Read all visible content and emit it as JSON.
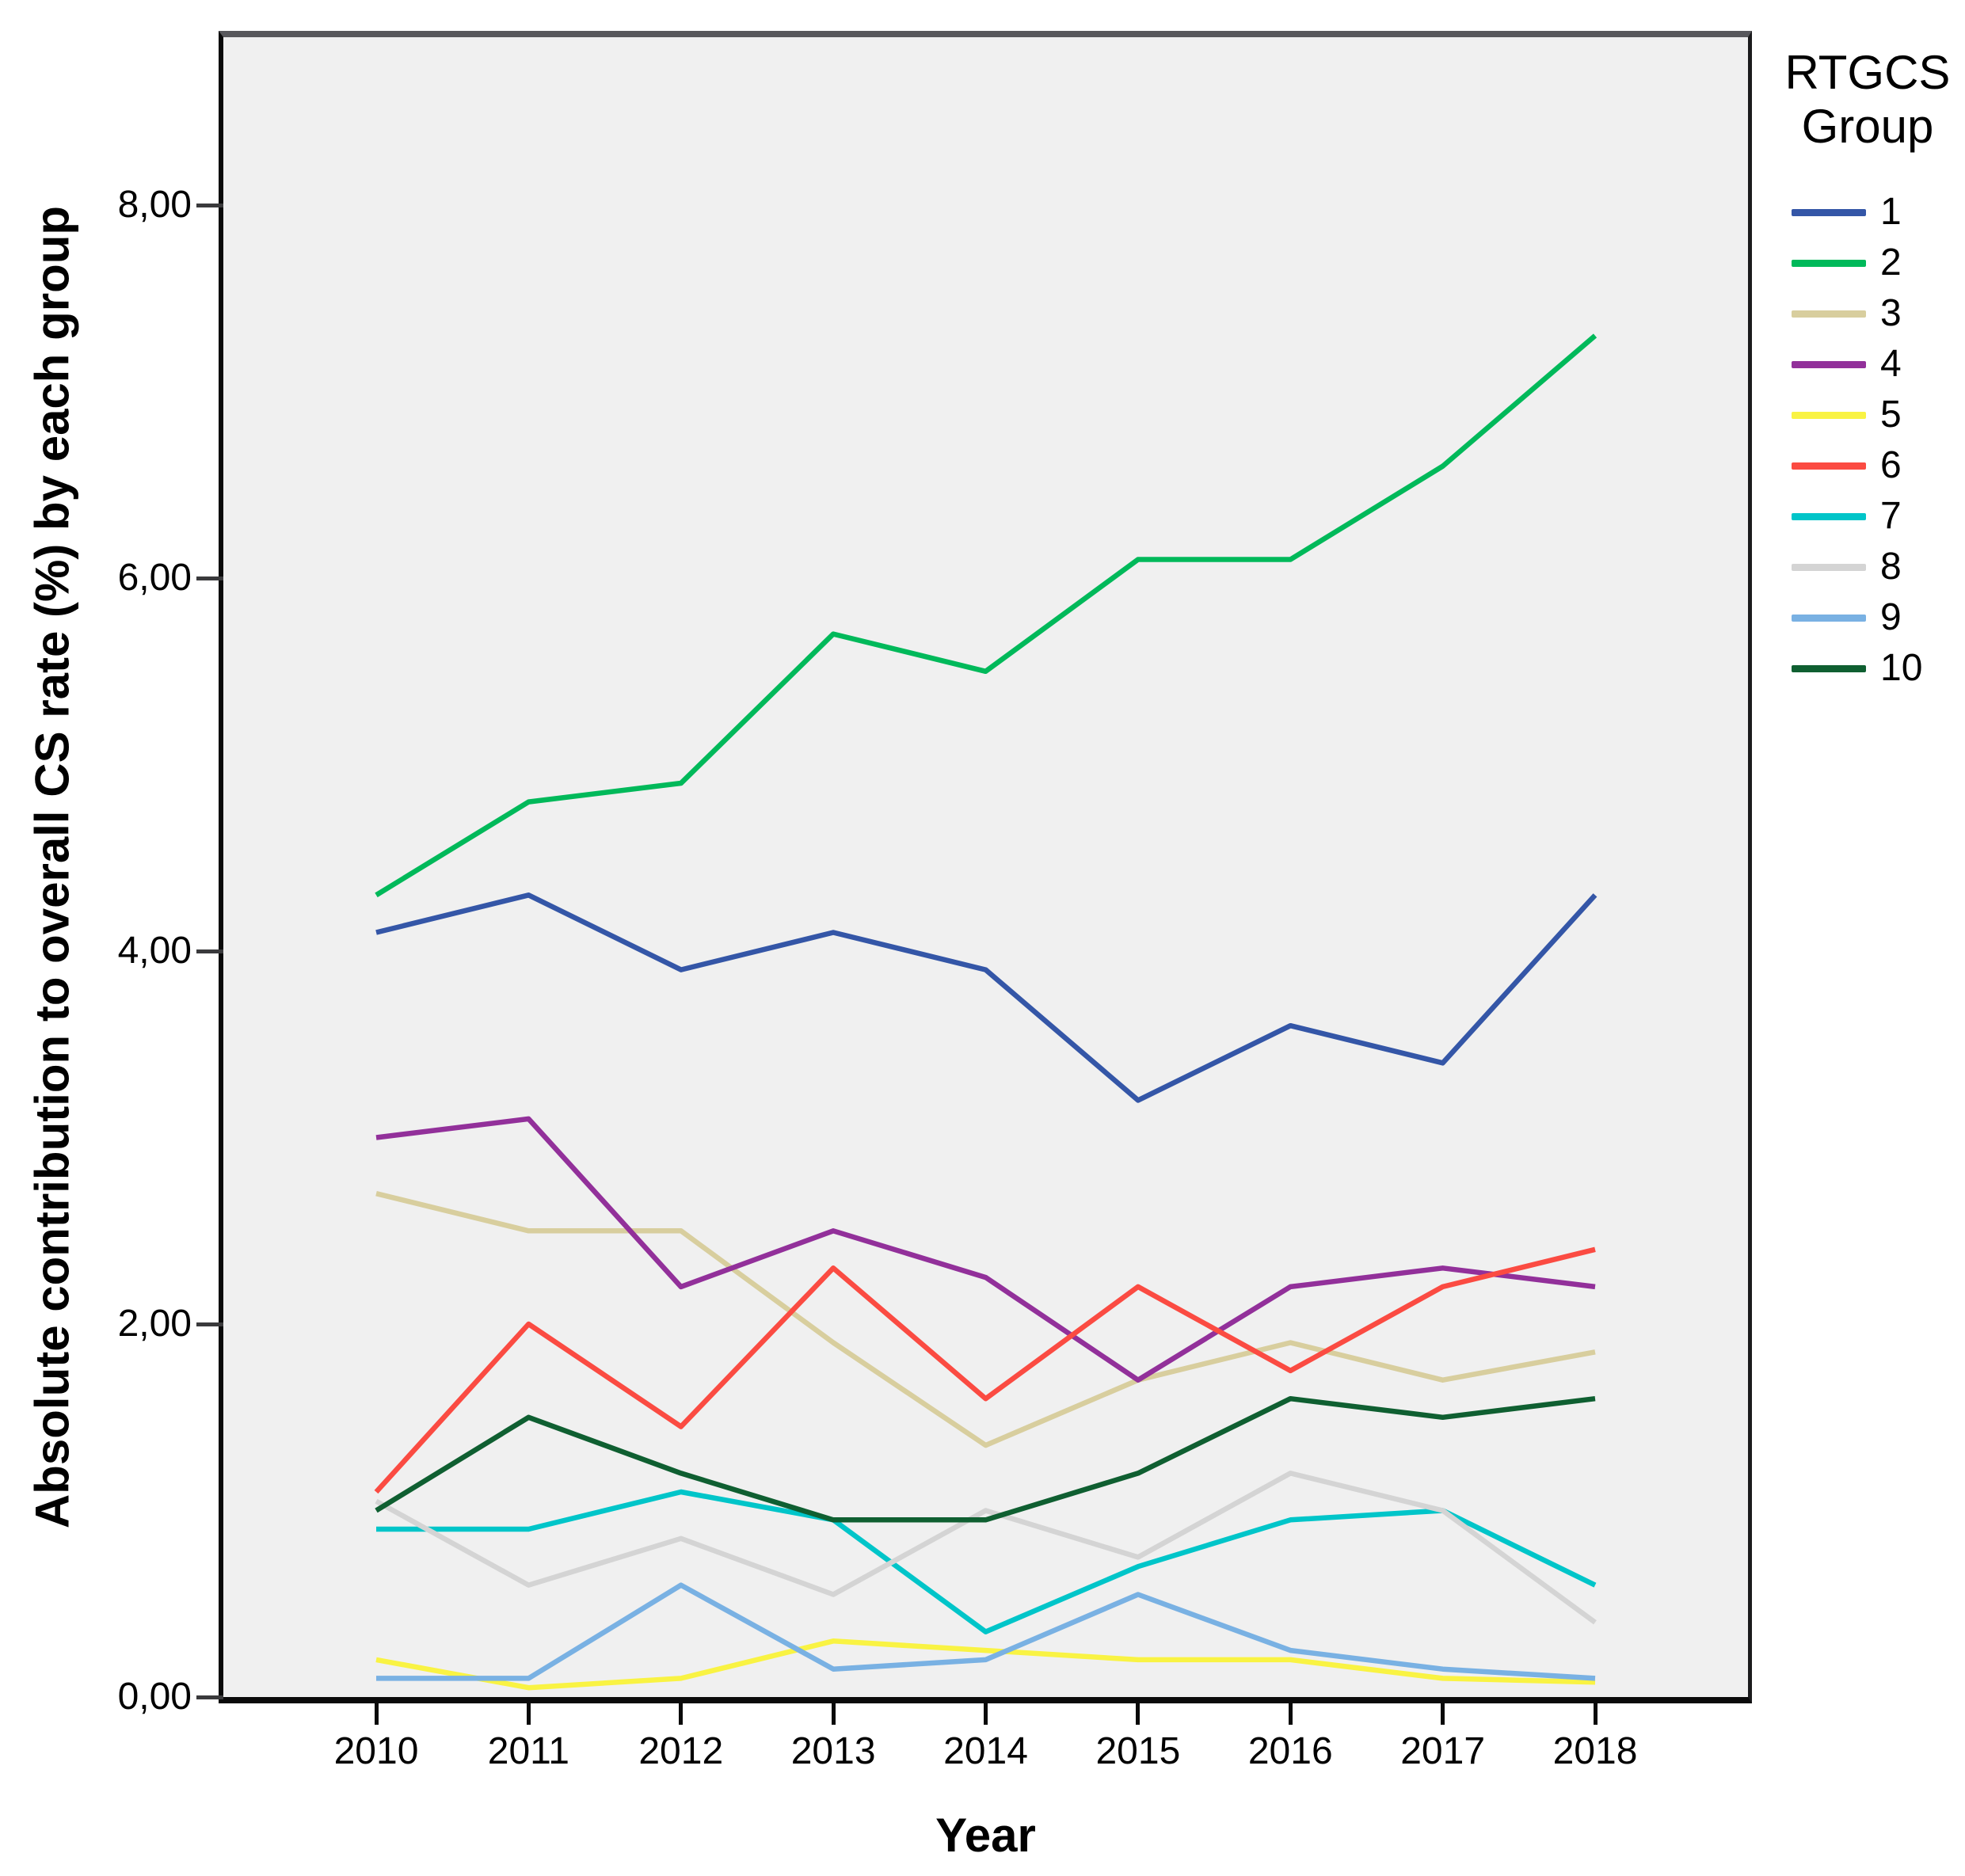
{
  "y_axis": {
    "title": "Absolute contribution to overall CS rate (%) by each group",
    "tick_labels": [
      "0,00",
      "2,00",
      "4,00",
      "6,00",
      "8,00"
    ],
    "tick_values": [
      0,
      2,
      4,
      6,
      8
    ]
  },
  "x_axis": {
    "title": "Year",
    "tick_labels": [
      "2010",
      "2011",
      "2012",
      "2013",
      "2014",
      "2015",
      "2016",
      "2017",
      "2018"
    ]
  },
  "legend": {
    "title_line1": "RTGCS",
    "title_line2": "Group",
    "entries": [
      {
        "label": "1",
        "color": "#3456A7"
      },
      {
        "label": "2",
        "color": "#00B95A"
      },
      {
        "label": "3",
        "color": "#D8CE9E"
      },
      {
        "label": "4",
        "color": "#92309A"
      },
      {
        "label": "5",
        "color": "#F9F343"
      },
      {
        "label": "6",
        "color": "#FB4B42"
      },
      {
        "label": "7",
        "color": "#00C5C9"
      },
      {
        "label": "8",
        "color": "#D4D4D4"
      },
      {
        "label": "9",
        "color": "#79B1E3"
      },
      {
        "label": "10",
        "color": "#0F5F31"
      }
    ]
  },
  "chart_data": {
    "type": "line",
    "title": "",
    "xlabel": "Year",
    "ylabel": "Absolute contribution to overall CS rate (%) by each group",
    "legend_title": "RTGCS Group",
    "legend_position": "right",
    "grid": false,
    "plot_background": "#F0F0F0",
    "ylim": [
      0,
      8.9
    ],
    "x": [
      2010,
      2011,
      2012,
      2013,
      2014,
      2015,
      2016,
      2017,
      2018
    ],
    "series": [
      {
        "name": "1",
        "color": "#3456A7",
        "values": [
          4.1,
          4.3,
          3.9,
          4.1,
          3.9,
          3.2,
          3.6,
          3.4,
          4.3
        ]
      },
      {
        "name": "2",
        "color": "#00B95A",
        "values": [
          4.3,
          4.8,
          4.9,
          5.7,
          5.5,
          6.1,
          6.1,
          6.6,
          7.3
        ]
      },
      {
        "name": "3",
        "color": "#D8CE9E",
        "values": [
          2.7,
          2.5,
          2.5,
          1.9,
          1.35,
          1.7,
          1.9,
          1.7,
          1.85
        ]
      },
      {
        "name": "4",
        "color": "#92309A",
        "values": [
          3.0,
          3.1,
          2.2,
          2.5,
          2.25,
          1.7,
          2.2,
          2.3,
          2.2
        ]
      },
      {
        "name": "5",
        "color": "#F9F343",
        "values": [
          0.2,
          0.05,
          0.1,
          0.3,
          0.25,
          0.2,
          0.2,
          0.1,
          0.08
        ]
      },
      {
        "name": "6",
        "color": "#FB4B42",
        "values": [
          1.1,
          2.0,
          1.45,
          2.3,
          1.6,
          2.2,
          1.75,
          2.2,
          2.4
        ]
      },
      {
        "name": "7",
        "color": "#00C5C9",
        "values": [
          0.9,
          0.9,
          1.1,
          0.95,
          0.35,
          0.7,
          0.95,
          1.0,
          0.6
        ]
      },
      {
        "name": "8",
        "color": "#D4D4D4",
        "values": [
          1.05,
          0.6,
          0.85,
          0.55,
          1.0,
          0.75,
          1.2,
          1.0,
          0.4
        ]
      },
      {
        "name": "9",
        "color": "#79B1E3",
        "values": [
          0.1,
          0.1,
          0.6,
          0.15,
          0.2,
          0.55,
          0.25,
          0.15,
          0.1
        ]
      },
      {
        "name": "10",
        "color": "#0F5F31",
        "values": [
          1.0,
          1.5,
          1.2,
          0.95,
          0.95,
          1.2,
          1.6,
          1.5,
          1.6
        ]
      }
    ]
  }
}
